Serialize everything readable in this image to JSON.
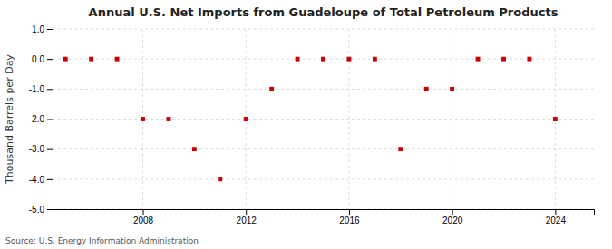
{
  "chart_data": {
    "type": "scatter",
    "title": "Annual U.S. Net Imports from Guadeloupe of Total Petroleum Products",
    "ylabel": "Thousand Barrels per Day",
    "annotations": [
      "Source: U.S. Energy Information Administration"
    ],
    "x": [
      2005,
      2006,
      2007,
      2008,
      2009,
      2010,
      2011,
      2012,
      2013,
      2014,
      2015,
      2016,
      2017,
      2018,
      2019,
      2020,
      2021,
      2022,
      2023,
      2024
    ],
    "values": [
      0,
      0,
      0,
      -2,
      -2,
      -3,
      -4,
      -2,
      -1,
      0,
      0,
      0,
      0,
      -3,
      -1,
      -1,
      0,
      0,
      0,
      -2
    ],
    "color": "#cc0000",
    "marker": "square",
    "grid": true,
    "xlim": [
      2004.5,
      2025.5
    ],
    "xticks": [
      2008,
      2012,
      2016,
      2020,
      2024
    ],
    "ylim": [
      -5.0,
      1.0
    ],
    "yticks": [
      {
        "value": 1.0,
        "label": "1.0"
      },
      {
        "value": 0.0,
        "label": "0.0"
      },
      {
        "value": -1.0,
        "label": "-1.0"
      },
      {
        "value": -2.0,
        "label": "-2.0"
      },
      {
        "value": -3.0,
        "label": "-3.0"
      },
      {
        "value": -4.0,
        "label": "-4.0"
      },
      {
        "value": -5.0,
        "label": "-5.0"
      }
    ]
  }
}
